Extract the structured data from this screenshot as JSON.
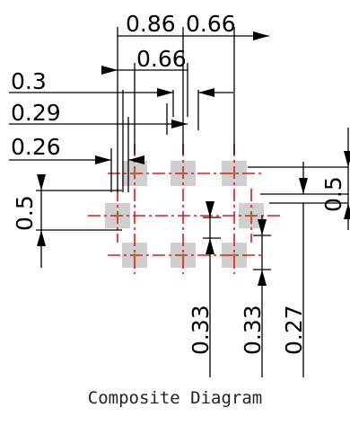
{
  "diagram": {
    "caption": "Composite Diagram",
    "dims": {
      "top_pitch_left": "0.86",
      "top_pitch_right": "0.66",
      "inner_pitch": "0.66",
      "offset_a": "0.3",
      "offset_b": "0.29",
      "offset_c": "0.26",
      "left_vertical": "0.5",
      "right_vertical": "0.5",
      "bottom_a": "0.33",
      "bottom_b": "0.33",
      "bottom_c": "0.27"
    },
    "colors": {
      "pad": "#cfcfcf",
      "centerline": "#e8141b",
      "dimension": "#000000",
      "pad_center": "#6b8e23"
    }
  }
}
